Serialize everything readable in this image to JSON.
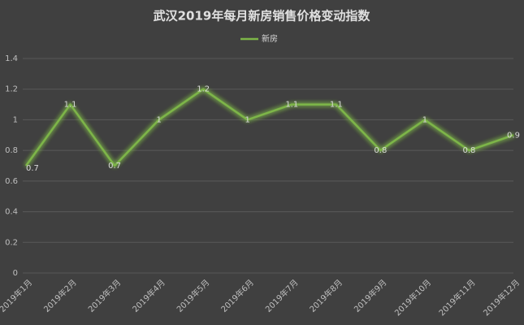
{
  "chart_data": {
    "type": "line",
    "title": "武汉2019年每月新房销售价格变动指数",
    "categories": [
      "2019年1月",
      "2019年2月",
      "2019年3月",
      "2019年4月",
      "2019年5月",
      "2019年6月",
      "2019年7月",
      "2019年8月",
      "2019年9月",
      "2019年10月",
      "2019年11月",
      "2019年12月"
    ],
    "series": [
      {
        "name": "新房",
        "color": "#7db548",
        "values": [
          0.7,
          1.1,
          0.7,
          1,
          1.2,
          1,
          1.1,
          1.1,
          0.8,
          1,
          0.8,
          0.9
        ]
      }
    ],
    "ylim": [
      0,
      1.4
    ],
    "yticks": [
      0,
      0.2,
      0.4,
      0.6,
      0.8,
      1,
      1.2,
      1.4
    ],
    "grid": true,
    "legend": "top"
  }
}
